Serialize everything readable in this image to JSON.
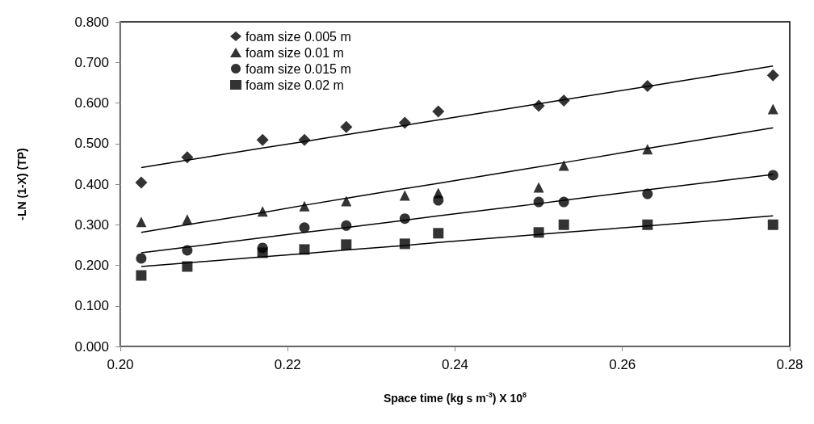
{
  "chart_data": {
    "type": "scatter",
    "xlabel": "Space time (kg s m$^{-3}$) X 10$^{8}$",
    "ylabel": "-LN (1-X) (TP)",
    "x": [
      0.2025,
      0.208,
      0.217,
      0.222,
      0.227,
      0.234,
      0.238,
      0.25,
      0.253,
      0.263,
      0.278
    ],
    "series": [
      {
        "name": "foam size 0.005 m",
        "color": "#000000",
        "marker": "diamond",
        "values": [
          0.404,
          0.466,
          0.509,
          0.509,
          0.541,
          0.551,
          0.579,
          0.593,
          0.606,
          0.642,
          0.668
        ]
      },
      {
        "name": "foam size 0.01 m",
        "color": "#000000",
        "marker": "triangle",
        "values": [
          0.307,
          0.313,
          0.333,
          0.346,
          0.358,
          0.372,
          0.378,
          0.392,
          0.446,
          0.486,
          0.585
        ]
      },
      {
        "name": "foam size 0.015 m",
        "color": "#000000",
        "marker": "circle",
        "values": [
          0.217,
          0.237,
          0.243,
          0.293,
          0.298,
          0.315,
          0.36,
          0.356,
          0.356,
          0.376,
          0.422
        ]
      },
      {
        "name": "foam size 0.02 m",
        "color": "#000000",
        "marker": "square",
        "values": [
          0.175,
          0.197,
          0.231,
          0.239,
          0.251,
          0.253,
          0.279,
          0.281,
          0.3,
          0.3,
          0.3
        ]
      },
      {
        "type": "line",
        "color": "#000000",
        "marker": "none",
        "values": [
          0.441,
          0.459,
          0.489,
          0.505,
          0.522,
          0.545,
          0.558,
          0.598,
          0.608,
          0.641,
          0.691
        ]
      },
      {
        "type": "line",
        "color": "#000000",
        "marker": "none",
        "values": [
          0.281,
          0.3,
          0.33,
          0.348,
          0.365,
          0.389,
          0.402,
          0.443,
          0.453,
          0.488,
          0.539
        ]
      },
      {
        "type": "line",
        "color": "#000000",
        "marker": "none",
        "values": [
          0.231,
          0.245,
          0.268,
          0.281,
          0.293,
          0.311,
          0.322,
          0.352,
          0.36,
          0.386,
          0.424
        ]
      },
      {
        "type": "line",
        "color": "#000000",
        "marker": "none",
        "values": [
          0.197,
          0.206,
          0.221,
          0.229,
          0.238,
          0.249,
          0.256,
          0.276,
          0.281,
          0.297,
          0.322
        ]
      }
    ],
    "xlim": [
      0.2,
      0.28
    ],
    "xticks": [
      {
        "value": 0.2,
        "label": "0.20"
      },
      0.22,
      0.24,
      0.26,
      {
        "value": 0.28,
        "label": "0.28"
      }
    ],
    "ylim": [
      0,
      0.8
    ],
    "yticks": [
      {
        "value": 0,
        "label": "0.000"
      },
      {
        "value": 0.1,
        "label": "0.100"
      },
      {
        "value": 0.2,
        "label": "0.200"
      },
      {
        "value": 0.3,
        "label": "0.300"
      },
      {
        "value": 0.4,
        "label": "0.400"
      },
      {
        "value": 0.5,
        "label": "0.500"
      },
      {
        "value": 0.6,
        "label": "0.600"
      },
      {
        "value": 0.7,
        "label": "0.700"
      },
      {
        "value": 0.8,
        "label": "0.800"
      }
    ],
    "grid": false,
    "legend": "top left"
  }
}
